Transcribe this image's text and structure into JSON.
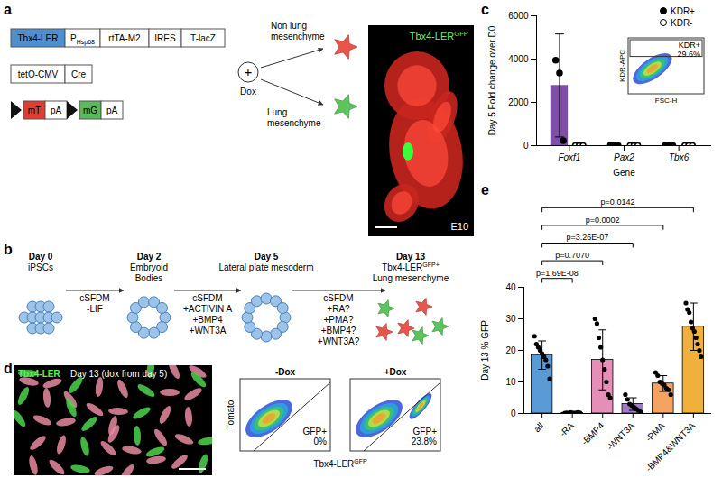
{
  "panels": {
    "a": {
      "label": "a",
      "construct": [
        [
          "Tbx4-LER",
          {
            "text": "P",
            "sub": "Hsp68"
          },
          "rtTA-M2",
          "IRES",
          "T-lacZ"
        ],
        [
          "tetO-CMV",
          "Cre"
        ],
        [
          "mT",
          "pA",
          "mG",
          "pA"
        ]
      ],
      "dox": [
        "+",
        "Dox"
      ],
      "outcomes": [
        [
          "Non lung",
          "mesenchyme"
        ],
        [
          "Lung",
          "mesenchyme"
        ]
      ],
      "image": {
        "title": {
          "text": "Tbx4-LER",
          "sup": "GFP"
        },
        "stage": "E10"
      }
    },
    "b": {
      "label": "b",
      "stages": [
        {
          "day": "Day 0",
          "name": [
            "iPSCs"
          ]
        },
        {
          "day": "Day 2",
          "name": [
            "Embryoid",
            "Bodies"
          ]
        },
        {
          "day": "Day 5",
          "name": [
            "Lateral plate mesoderm"
          ]
        },
        {
          "day": "Day 13",
          "name": [
            {
              "text": "Tbx4-LER",
              "sup": "GFP+"
            },
            "Lung mesenchyme"
          ]
        }
      ],
      "steps": [
        [
          "cSFDM",
          "-LIF"
        ],
        [
          "cSFDM",
          "+ACTIVIN A",
          "+BMP4",
          "+WNT3A"
        ],
        [
          "cSFDM",
          "+RA?",
          "+PMA?",
          "+BMP4?",
          "+WNT3A?"
        ]
      ]
    },
    "d": {
      "label": "d",
      "image": {
        "title": "Tbx4-LER",
        "subtitle": "Day 13 (dox from day 5)"
      },
      "flow": {
        "y_label": "Tomato",
        "x_label": {
          "text": "Tbx4-LER",
          "sup": "GFP"
        },
        "plots": [
          {
            "title": "-Dox",
            "gate": [
              "GFP+",
              "0%"
            ]
          },
          {
            "title": "+Dox",
            "gate": [
              "GFP+",
              "23.8%"
            ]
          }
        ]
      }
    }
  },
  "chart_data": [
    {
      "panel": "c",
      "type": "bar",
      "y_label": "Day 5 Fold change over D0",
      "x_label": "Gene",
      "categories": [
        "Foxf1",
        "Pax2",
        "Tbx6"
      ],
      "ylim": [
        0,
        6000
      ],
      "yticks": [
        0,
        2000,
        4000,
        6000
      ],
      "legend": "top-right",
      "series": [
        {
          "name": "KDR+",
          "color": "#7d4fa5",
          "marker": "filled_circle",
          "values": [
            2780,
            5,
            4
          ],
          "errors": [
            2380,
            0,
            0
          ],
          "points": [
            [
              3950,
              3350,
              230
            ],
            [
              6,
              4,
              3
            ],
            [
              5,
              4,
              2
            ]
          ]
        },
        {
          "name": "KDR-",
          "color": "#7d4fa5",
          "marker": "open_circle",
          "values": [
            3,
            2,
            2
          ],
          "errors": [
            0,
            0,
            0
          ],
          "points": [
            [
              4,
              3,
              2
            ],
            [
              3,
              2,
              1
            ],
            [
              2,
              2,
              1
            ]
          ]
        }
      ],
      "inset": {
        "x_label": "FSC-H",
        "y_label": "KDR-APC",
        "gate": [
          "KDR+",
          "29.6%"
        ]
      }
    },
    {
      "panel": "e",
      "type": "bar",
      "y_label": "Day 13 % GFP",
      "categories": [
        "all",
        "-RA",
        "-BMP4",
        "-WNT3A",
        "-PMA",
        "-BMP4&WNT3A"
      ],
      "colors": [
        "#5b9bd5",
        "#ff7f7f",
        "#e58fb8",
        "#a07cc5",
        "#f4a460",
        "#f0b13c"
      ],
      "values": [
        18.5,
        0.2,
        17,
        3,
        9.5,
        27.5
      ],
      "errors": [
        4.5,
        0.2,
        9.5,
        2,
        2.5,
        7.5
      ],
      "points": [
        [
          24.5,
          22,
          21,
          20,
          19,
          18,
          17,
          15,
          11
        ],
        [
          0.1,
          0.2,
          0.1,
          0.3,
          0.2,
          0.1,
          0.2,
          0.3,
          0.2
        ],
        [
          30,
          28.5,
          24,
          21,
          17,
          14,
          10,
          6,
          5
        ],
        [
          6,
          4.5,
          3,
          2.5,
          2,
          1.5,
          1,
          0.5
        ],
        [
          13,
          12,
          10,
          9.5,
          9,
          8,
          7.5,
          6
        ],
        [
          35,
          33,
          32,
          29,
          27,
          26,
          24,
          22,
          20,
          18
        ]
      ],
      "ylim": [
        0,
        40
      ],
      "yticks": [
        0,
        10,
        20,
        30,
        40
      ],
      "comparisons": [
        {
          "from": "all",
          "to": "-RA",
          "label": "p=1.69E-08"
        },
        {
          "from": "all",
          "to": "-BMP4",
          "label": "p=0.7070"
        },
        {
          "from": "all",
          "to": "-WNT3A",
          "label": "p=3.26E-07"
        },
        {
          "from": "all",
          "to": "-PMA",
          "label": "p=0.0002"
        },
        {
          "from": "all",
          "to": "-BMP4&WNT3A",
          "label": "p=0.0142"
        }
      ]
    }
  ]
}
